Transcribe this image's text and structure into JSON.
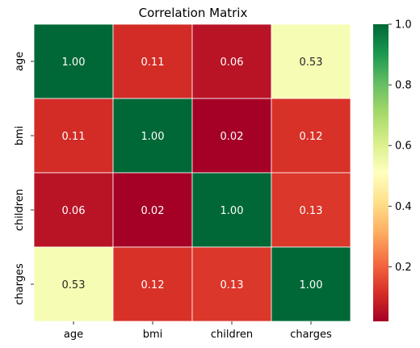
{
  "chart_data": {
    "type": "heatmap",
    "title": "Correlation Matrix",
    "x_labels": [
      "age",
      "bmi",
      "children",
      "charges"
    ],
    "y_labels": [
      "age",
      "bmi",
      "children",
      "charges"
    ],
    "values": [
      [
        1.0,
        0.11,
        0.06,
        0.53
      ],
      [
        0.11,
        1.0,
        0.02,
        0.12
      ],
      [
        0.06,
        0.02,
        1.0,
        0.13
      ],
      [
        0.53,
        0.12,
        0.13,
        1.0
      ]
    ],
    "annotation_format": "0.00",
    "colormap": "RdYlGn",
    "color_range": [
      0.02,
      1.0
    ],
    "colorbar_ticks": [
      "0.2",
      "0.4",
      "0.6",
      "0.8",
      "1.0"
    ],
    "colorbar_tick_values": [
      0.2,
      0.4,
      0.6,
      0.8,
      1.0
    ],
    "cell_line_color": "#ffffff"
  }
}
